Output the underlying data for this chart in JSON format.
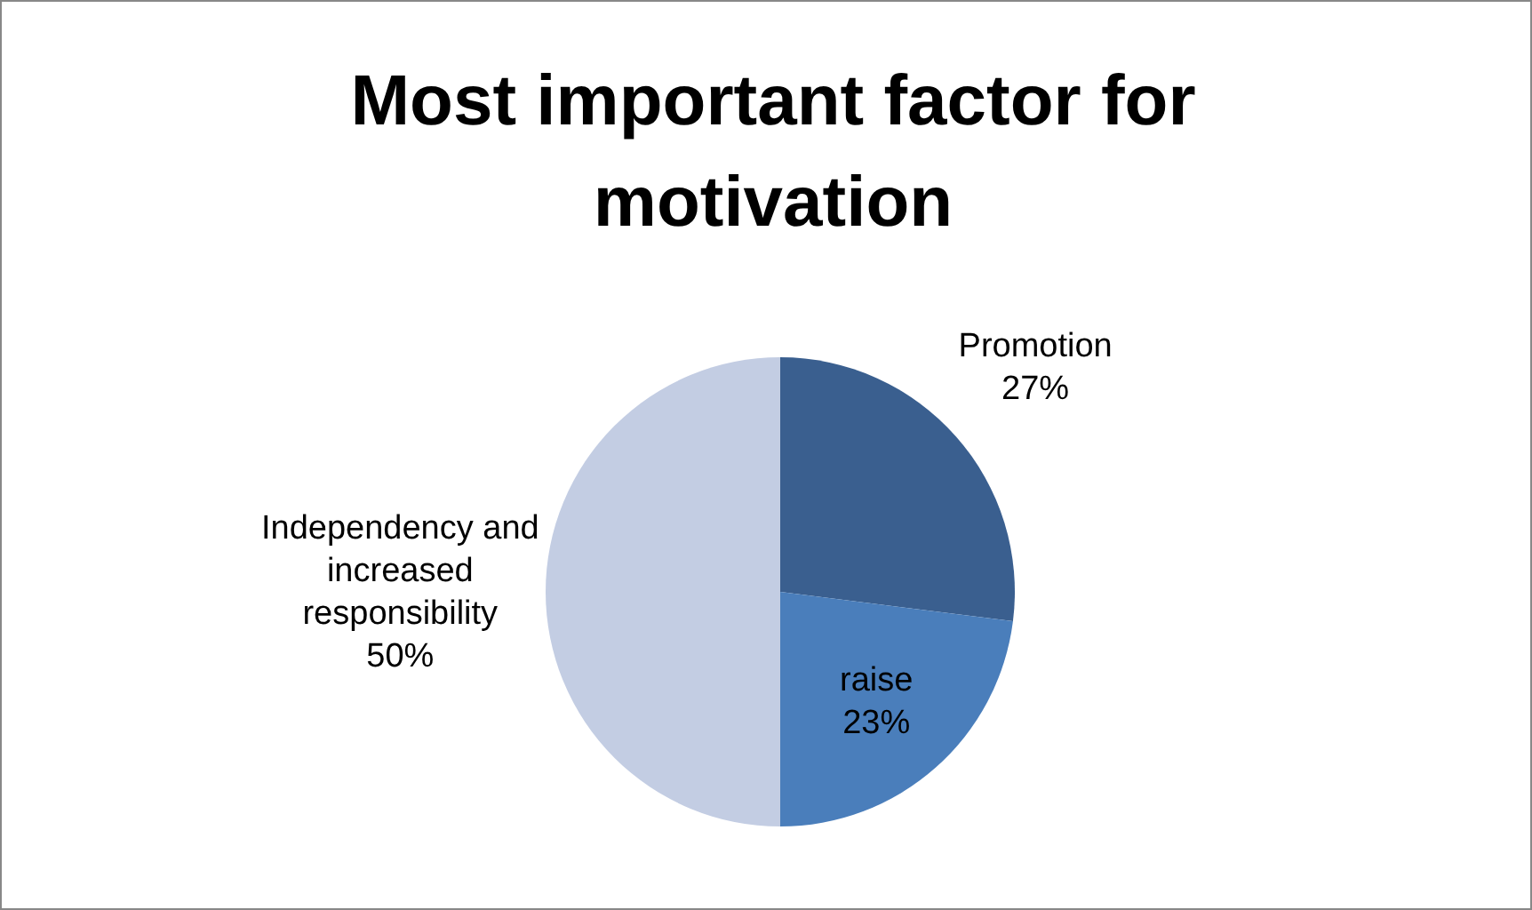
{
  "chart_data": {
    "type": "pie",
    "title": "Most important factor for motivation",
    "categories": [
      "Promotion",
      "raise",
      "Independency and increased responsibility"
    ],
    "values": [
      27,
      23,
      50
    ],
    "value_labels": [
      "27%",
      "23%",
      "50%"
    ],
    "colors": [
      "#3a5f8f",
      "#4a7ebb",
      "#c3cde3"
    ]
  }
}
